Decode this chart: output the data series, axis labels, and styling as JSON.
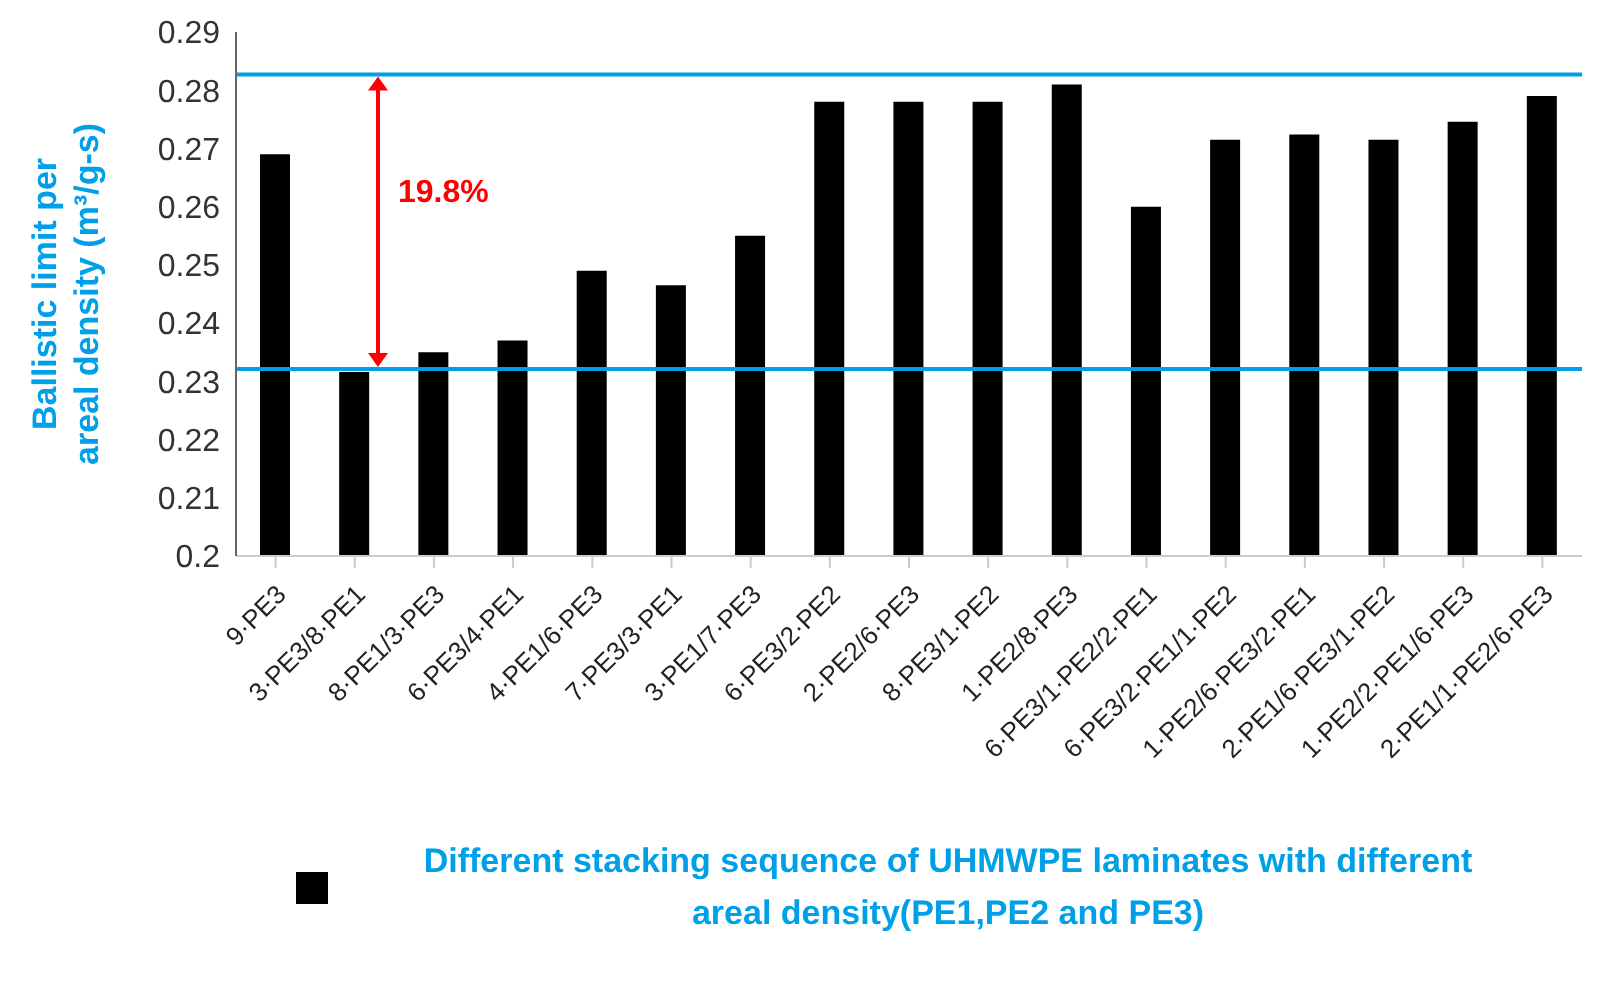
{
  "chart_data": {
    "type": "bar",
    "ylabel": "Ballistic limit per areal density (m³/g-s)",
    "categories": [
      "9·PE3",
      "3·PE3/8·PE1",
      "8·PE1/3·PE3",
      "6·PE3/4·PE1",
      "4·PE1/6·PE3",
      "7·PE3/3·PE1",
      "3·PE1/7·PE3",
      "6·PE3/2·PE2",
      "2·PE2/6·PE3",
      "8·PE3/1·PE2",
      "1·PE2/8·PE3",
      "6·PE3/1·PE2/2·PE1",
      "6·PE3/2·PE1/1·PE2",
      "1·PE2/6·PE3/2·PE1",
      "2·PE1/6·PE3/1·PE2",
      "1·PE2/2·PE1/6·PE3",
      "2·PE1/1·PE2/6·PE3"
    ],
    "series": [
      {
        "name": "Different stacking sequence of UHMWPE laminates with different areal density(PE1,PE2 and PE3)",
        "color": "#000000",
        "values": [
          0.269,
          0.2316,
          0.235,
          0.237,
          0.249,
          0.2465,
          0.255,
          0.278,
          0.278,
          0.278,
          0.281,
          0.26,
          0.2715,
          0.2724,
          0.2715,
          0.2746,
          0.279
        ]
      }
    ],
    "ylim": [
      0.2,
      0.29
    ],
    "yticks": [
      0.2,
      0.21,
      0.22,
      0.23,
      0.24,
      0.25,
      0.26,
      0.27,
      0.28,
      0.29
    ],
    "ref_lines": [
      {
        "axis": "y",
        "value": 0.2827,
        "color": "#00a0e8"
      },
      {
        "axis": "y",
        "value": 0.2321,
        "color": "#00a0e8"
      }
    ],
    "annotations": [
      "19.8%"
    ],
    "legend": "bottom"
  }
}
